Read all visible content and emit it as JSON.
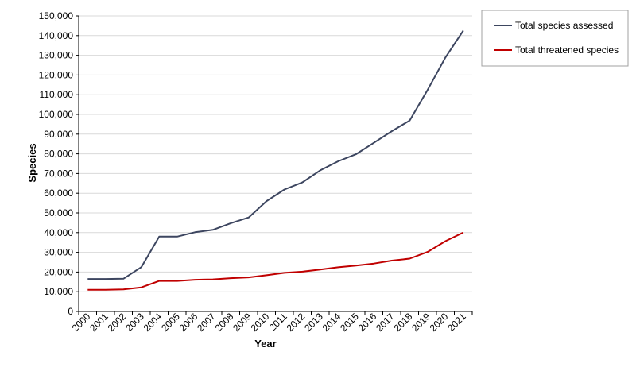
{
  "chart_data": {
    "type": "line",
    "title": "",
    "xlabel": "Year",
    "ylabel": "Species",
    "categories": [
      "2000",
      "2001",
      "2002",
      "2003",
      "2004",
      "2005",
      "2006",
      "2007",
      "2008",
      "2009",
      "2010",
      "2011",
      "2012",
      "2013",
      "2014",
      "2015",
      "2016",
      "2017",
      "2018",
      "2019",
      "2020",
      "2021"
    ],
    "ylim": [
      0,
      150000
    ],
    "yticks": [
      0,
      10000,
      20000,
      30000,
      40000,
      50000,
      60000,
      70000,
      80000,
      90000,
      100000,
      110000,
      120000,
      130000,
      140000,
      150000
    ],
    "ytick_labels": [
      "0",
      "10,000",
      "20,000",
      "30,000",
      "40,000",
      "50,000",
      "60,000",
      "70,000",
      "80,000",
      "90,000",
      "100,000",
      "110,000",
      "120,000",
      "130,000",
      "140,000",
      "150,000"
    ],
    "grid": true,
    "legend_position": "top-right outside",
    "series": [
      {
        "name": "Total species assessed",
        "color": "#3d4660",
        "values": [
          16500,
          16500,
          16600,
          22500,
          38000,
          38000,
          40200,
          41400,
          44800,
          47700,
          56000,
          61900,
          65500,
          71600,
          76200,
          79800,
          85600,
          91500,
          96900,
          112400,
          128900,
          142600
        ]
      },
      {
        "name": "Total threatened species",
        "color": "#c00000",
        "values": [
          11000,
          11000,
          11200,
          12200,
          15500,
          15500,
          16100,
          16300,
          16900,
          17300,
          18400,
          19600,
          20200,
          21300,
          22400,
          23300,
          24300,
          25800,
          26800,
          30200,
          35700,
          40100
        ]
      }
    ]
  }
}
